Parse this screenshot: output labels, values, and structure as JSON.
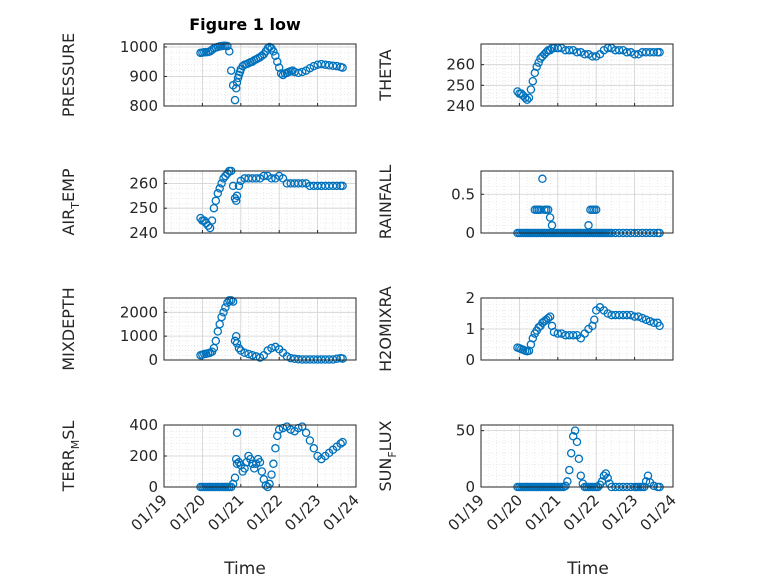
{
  "figure": {
    "title": "Figure 1 low",
    "xlabel": "Time",
    "marker_color": "#0072BD",
    "x_ticks": [
      "01/19",
      "01/20",
      "01/21",
      "01/22",
      "01/23",
      "01/24"
    ]
  },
  "chart_data": [
    {
      "type": "scatter",
      "ylabel": "PRESSURE",
      "ylim": [
        800,
        1010
      ],
      "yticks": [
        800,
        900,
        1000
      ],
      "xlim": [
        19,
        24
      ],
      "grid": true,
      "x": [
        19.95,
        20.0,
        20.05,
        20.1,
        20.15,
        20.2,
        20.25,
        20.3,
        20.35,
        20.4,
        20.45,
        20.5,
        20.55,
        20.6,
        20.65,
        20.7,
        20.75,
        20.8,
        20.85,
        20.88,
        20.9,
        20.93,
        20.95,
        20.98,
        21.0,
        21.05,
        21.1,
        21.15,
        21.2,
        21.25,
        21.3,
        21.35,
        21.4,
        21.45,
        21.5,
        21.55,
        21.6,
        21.65,
        21.7,
        21.75,
        21.8,
        21.85,
        21.9,
        21.95,
        22.0,
        22.05,
        22.1,
        22.15,
        22.2,
        22.25,
        22.3,
        22.35,
        22.4,
        22.5,
        22.6,
        22.7,
        22.8,
        22.9,
        23.0,
        23.1,
        23.2,
        23.3,
        23.4,
        23.5,
        23.6,
        23.65
      ],
      "y": [
        980,
        981,
        982,
        982,
        983,
        985,
        990,
        995,
        998,
        1000,
        1002,
        1003,
        1004,
        1004,
        1003,
        985,
        920,
        870,
        820,
        860,
        880,
        895,
        905,
        915,
        925,
        935,
        940,
        942,
        945,
        948,
        950,
        955,
        958,
        962,
        965,
        970,
        975,
        985,
        995,
        1000,
        995,
        985,
        970,
        950,
        930,
        910,
        905,
        910,
        912,
        915,
        918,
        920,
        915,
        912,
        915,
        920,
        928,
        935,
        940,
        942,
        940,
        938,
        936,
        935,
        932,
        930
      ]
    },
    {
      "type": "scatter",
      "ylabel": "THETA",
      "ylim": [
        240,
        270
      ],
      "yticks": [
        240,
        250,
        260
      ],
      "xlim": [
        19,
        24
      ],
      "grid": true,
      "x": [
        19.95,
        20.0,
        20.05,
        20.1,
        20.15,
        20.2,
        20.25,
        20.3,
        20.35,
        20.4,
        20.45,
        20.5,
        20.55,
        20.6,
        20.65,
        20.7,
        20.75,
        20.8,
        20.85,
        20.9,
        21.0,
        21.1,
        21.2,
        21.3,
        21.4,
        21.5,
        21.6,
        21.7,
        21.8,
        21.9,
        22.0,
        22.1,
        22.2,
        22.3,
        22.4,
        22.5,
        22.6,
        22.7,
        22.8,
        22.9,
        23.0,
        23.1,
        23.2,
        23.3,
        23.4,
        23.5,
        23.6,
        23.65
      ],
      "y": [
        247,
        246,
        246,
        245,
        244,
        243,
        244,
        248,
        252,
        256,
        259,
        261,
        263,
        264,
        265,
        266,
        267,
        267,
        268,
        268,
        268,
        268,
        267,
        267,
        267,
        266,
        266,
        265,
        265,
        264,
        264,
        265,
        267,
        268,
        268,
        267,
        267,
        267,
        266,
        266,
        265,
        265,
        266,
        266,
        266,
        266,
        266,
        266
      ]
    },
    {
      "type": "scatter",
      "ylabel": "AIR_TEMP",
      "ylim": [
        240,
        265
      ],
      "yticks": [
        240,
        250,
        260
      ],
      "xlim": [
        19,
        24
      ],
      "grid": true,
      "x": [
        19.95,
        20.0,
        20.05,
        20.1,
        20.15,
        20.2,
        20.25,
        20.3,
        20.35,
        20.4,
        20.45,
        20.5,
        20.55,
        20.6,
        20.65,
        20.7,
        20.75,
        20.8,
        20.85,
        20.88,
        20.9,
        20.95,
        21.0,
        21.1,
        21.2,
        21.3,
        21.4,
        21.5,
        21.6,
        21.7,
        21.8,
        21.9,
        22.0,
        22.1,
        22.2,
        22.3,
        22.4,
        22.5,
        22.6,
        22.7,
        22.8,
        22.9,
        23.0,
        23.1,
        23.2,
        23.3,
        23.4,
        23.5,
        23.6,
        23.65
      ],
      "y": [
        246,
        245,
        245,
        244,
        243,
        242,
        245,
        250,
        253,
        256,
        258,
        260,
        262,
        263,
        264,
        265,
        265,
        259,
        254,
        253,
        255,
        259,
        261,
        262,
        262,
        262,
        262,
        262,
        263,
        263,
        262,
        262,
        263,
        262,
        260,
        260,
        260,
        260,
        260,
        260,
        259,
        259,
        259,
        259,
        259,
        259,
        259,
        259,
        259,
        259
      ]
    },
    {
      "type": "scatter",
      "ylabel": "RAINFALL",
      "ylim": [
        0,
        0.8
      ],
      "yticks": [
        0,
        0.5
      ],
      "xlim": [
        19,
        24
      ],
      "grid": true,
      "x": [
        19.95,
        20.0,
        20.05,
        20.1,
        20.15,
        20.2,
        20.25,
        20.3,
        20.35,
        20.4,
        20.45,
        20.5,
        20.55,
        20.6,
        20.65,
        20.7,
        20.75,
        20.8,
        20.85,
        20.9,
        20.95,
        21.0,
        21.05,
        21.1,
        21.15,
        21.2,
        21.25,
        21.3,
        21.35,
        21.4,
        21.45,
        21.5,
        21.55,
        21.6,
        21.65,
        21.7,
        21.75,
        21.8,
        21.85,
        21.9,
        21.95,
        22.0,
        22.05,
        22.1,
        22.15,
        22.2,
        22.25,
        22.3,
        22.35,
        22.4,
        22.5,
        22.6,
        22.7,
        22.8,
        22.9,
        23.0,
        23.1,
        23.2,
        23.3,
        23.4,
        23.5,
        23.6,
        23.65,
        20.4,
        20.45,
        20.5,
        20.55,
        20.6,
        20.65,
        20.7,
        20.75,
        20.8,
        20.85,
        20.5,
        21.8,
        21.85,
        21.9,
        21.95,
        22.0
      ],
      "y": [
        0,
        0,
        0,
        0,
        0,
        0,
        0,
        0,
        0,
        0,
        0,
        0,
        0,
        0,
        0,
        0,
        0,
        0,
        0,
        0,
        0,
        0,
        0,
        0,
        0,
        0,
        0,
        0,
        0,
        0,
        0,
        0,
        0,
        0,
        0,
        0,
        0,
        0,
        0,
        0,
        0,
        0,
        0,
        0,
        0,
        0,
        0,
        0,
        0,
        0,
        0,
        0,
        0,
        0,
        0,
        0,
        0,
        0,
        0,
        0,
        0,
        0,
        0,
        0.3,
        0.3,
        0.3,
        0.3,
        0.7,
        0.3,
        0.3,
        0.3,
        0.2,
        0.1,
        0.3,
        0.1,
        0.3,
        0.3,
        0.3,
        0.3
      ]
    },
    {
      "type": "scatter",
      "ylabel": "MIXDEPTH",
      "ylim": [
        0,
        2600
      ],
      "yticks": [
        0,
        1000,
        2000
      ],
      "xlim": [
        19,
        24
      ],
      "grid": true,
      "x": [
        19.95,
        20.0,
        20.05,
        20.1,
        20.15,
        20.2,
        20.25,
        20.3,
        20.35,
        20.4,
        20.45,
        20.5,
        20.55,
        20.6,
        20.65,
        20.7,
        20.75,
        20.8,
        20.85,
        20.88,
        20.9,
        20.95,
        21.0,
        21.1,
        21.2,
        21.3,
        21.4,
        21.5,
        21.6,
        21.7,
        21.8,
        21.9,
        22.0,
        22.1,
        22.2,
        22.3,
        22.4,
        22.5,
        22.6,
        22.7,
        22.8,
        22.9,
        23.0,
        23.1,
        23.2,
        23.3,
        23.4,
        23.5,
        23.6,
        23.65
      ],
      "y": [
        200,
        220,
        250,
        260,
        280,
        300,
        350,
        500,
        800,
        1200,
        1500,
        1800,
        2000,
        2200,
        2400,
        2500,
        2500,
        2450,
        800,
        1000,
        700,
        500,
        400,
        300,
        250,
        200,
        150,
        100,
        200,
        400,
        500,
        550,
        450,
        300,
        150,
        80,
        50,
        30,
        20,
        20,
        20,
        20,
        20,
        20,
        20,
        20,
        20,
        50,
        80,
        60
      ]
    },
    {
      "type": "scatter",
      "ylabel": "H2OMIXRA",
      "ylim": [
        0,
        2
      ],
      "yticks": [
        0,
        1,
        2
      ],
      "xlim": [
        19,
        24
      ],
      "grid": true,
      "x": [
        19.95,
        20.0,
        20.05,
        20.1,
        20.15,
        20.2,
        20.25,
        20.3,
        20.35,
        20.4,
        20.45,
        20.5,
        20.55,
        20.6,
        20.65,
        20.7,
        20.75,
        20.8,
        20.85,
        20.9,
        21.0,
        21.1,
        21.2,
        21.3,
        21.4,
        21.5,
        21.6,
        21.7,
        21.8,
        21.9,
        21.95,
        22.0,
        22.1,
        22.2,
        22.3,
        22.4,
        22.5,
        22.6,
        22.7,
        22.8,
        22.9,
        23.0,
        23.1,
        23.2,
        23.3,
        23.4,
        23.5,
        23.6,
        23.65
      ],
      "y": [
        0.4,
        0.38,
        0.35,
        0.33,
        0.3,
        0.28,
        0.3,
        0.5,
        0.7,
        0.85,
        0.95,
        1.05,
        1.1,
        1.2,
        1.25,
        1.3,
        1.35,
        1.4,
        1.1,
        0.9,
        0.85,
        0.85,
        0.8,
        0.8,
        0.8,
        0.8,
        0.7,
        0.85,
        1.0,
        1.1,
        1.3,
        1.6,
        1.7,
        1.6,
        1.5,
        1.45,
        1.45,
        1.45,
        1.45,
        1.45,
        1.45,
        1.4,
        1.4,
        1.35,
        1.3,
        1.25,
        1.2,
        1.2,
        1.1
      ]
    },
    {
      "type": "scatter",
      "ylabel": "TERR_MSL",
      "ylim": [
        0,
        400
      ],
      "yticks": [
        0,
        200,
        400
      ],
      "xlim": [
        19,
        24
      ],
      "grid": true,
      "x": [
        19.95,
        20.0,
        20.05,
        20.1,
        20.15,
        20.2,
        20.25,
        20.3,
        20.35,
        20.4,
        20.45,
        20.5,
        20.55,
        20.6,
        20.65,
        20.7,
        20.75,
        20.8,
        20.85,
        20.9,
        20.95,
        21.0,
        21.05,
        21.1,
        21.15,
        21.2,
        21.25,
        21.3,
        21.35,
        21.4,
        21.45,
        21.5,
        21.55,
        21.6,
        21.65,
        21.7,
        21.75,
        21.8,
        21.85,
        21.9,
        21.95,
        22.0,
        22.1,
        22.2,
        22.3,
        22.4,
        22.5,
        22.6,
        22.7,
        22.8,
        22.9,
        23.0,
        23.1,
        23.2,
        23.3,
        23.4,
        23.5,
        23.6,
        23.65,
        20.88,
        20.9
      ],
      "y": [
        0,
        0,
        0,
        0,
        0,
        0,
        0,
        0,
        0,
        0,
        0,
        0,
        0,
        0,
        0,
        0,
        0,
        20,
        60,
        150,
        160,
        140,
        100,
        120,
        160,
        200,
        180,
        150,
        120,
        150,
        180,
        160,
        100,
        50,
        10,
        0,
        20,
        80,
        150,
        250,
        330,
        370,
        380,
        390,
        370,
        360,
        380,
        390,
        350,
        300,
        250,
        200,
        180,
        200,
        220,
        240,
        260,
        280,
        290,
        180,
        350
      ]
    },
    {
      "type": "scatter",
      "ylabel": "SUN_FLUX",
      "ylim": [
        0,
        55
      ],
      "yticks": [
        0,
        50
      ],
      "xlim": [
        19,
        24
      ],
      "grid": true,
      "x": [
        19.95,
        20.0,
        20.05,
        20.1,
        20.15,
        20.2,
        20.25,
        20.3,
        20.35,
        20.4,
        20.45,
        20.5,
        20.55,
        20.6,
        20.65,
        20.7,
        20.75,
        20.8,
        20.85,
        20.9,
        20.95,
        21.0,
        21.05,
        21.1,
        21.15,
        21.2,
        21.25,
        21.3,
        21.35,
        21.4,
        21.45,
        21.5,
        21.55,
        21.6,
        21.65,
        21.7,
        21.75,
        21.8,
        21.85,
        21.9,
        21.95,
        22.0,
        22.05,
        22.1,
        22.15,
        22.2,
        22.25,
        22.3,
        22.35,
        22.4,
        22.5,
        22.6,
        22.7,
        22.8,
        22.9,
        23.0,
        23.05,
        23.1,
        23.15,
        23.2,
        23.25,
        23.3,
        23.35,
        23.4,
        23.5,
        23.6,
        23.65
      ],
      "y": [
        0,
        0,
        0,
        0,
        0,
        0,
        0,
        0,
        0,
        0,
        0,
        0,
        0,
        0,
        0,
        0,
        0,
        0,
        0,
        0,
        0,
        0,
        0,
        0,
        0,
        1,
        5,
        15,
        30,
        45,
        50,
        40,
        25,
        10,
        3,
        0,
        0,
        0,
        0,
        0,
        0,
        0,
        0,
        2,
        5,
        10,
        12,
        8,
        3,
        0,
        0,
        0,
        0,
        0,
        0,
        0,
        0,
        0,
        0,
        0,
        0,
        5,
        10,
        4,
        1,
        0,
        0
      ]
    }
  ]
}
